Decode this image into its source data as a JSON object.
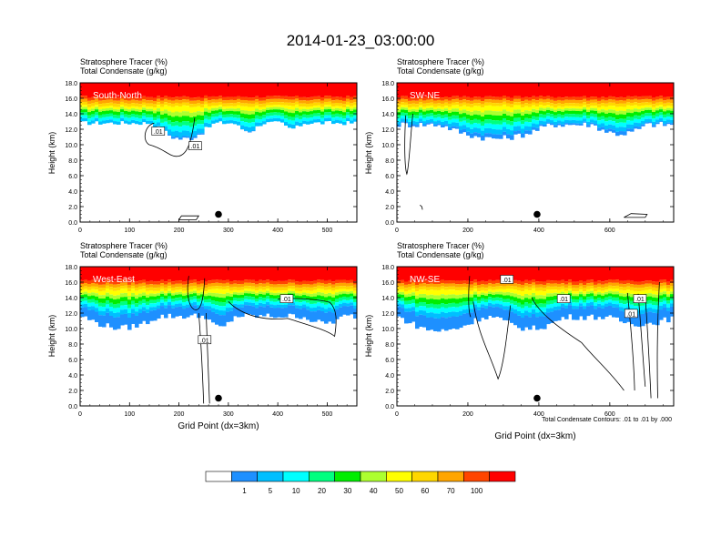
{
  "figure_title": "2014-01-23_03:00:00",
  "colorbar": {
    "colors": [
      "#ffffff",
      "#1e90ff",
      "#00bfff",
      "#00ffff",
      "#00ff7f",
      "#00ee00",
      "#adff2f",
      "#ffff00",
      "#ffd700",
      "#ffa500",
      "#ff4500",
      "#ff0000"
    ],
    "labels": [
      "1",
      "5",
      "10",
      "20",
      "30",
      "40",
      "50",
      "60",
      "70",
      "100"
    ]
  },
  "footnote": "Total Condensate Contours: .01 to .01 by .000",
  "chart_data": [
    {
      "type": "heatmap",
      "panel_label": "South-North",
      "title_line1": "Stratosphere Tracer   (%)",
      "title_line2": "Total Condensate   (g/kg)",
      "ylabel": "Height (km)",
      "xlabel": "",
      "xlim": [
        0,
        560
      ],
      "ylim": [
        0,
        18
      ],
      "xticks": [
        "0",
        "100",
        "200",
        "300",
        "400",
        "500"
      ],
      "xtick_values": [
        0,
        100,
        200,
        300,
        400,
        500
      ],
      "yticks": [
        "0.0",
        "2.0",
        "4.0",
        "6.0",
        "8.0",
        "10.0",
        "12.0",
        "14.0",
        "16.0",
        "18.0"
      ],
      "marker": {
        "x": 280,
        "y": 1.0
      },
      "contour_labels": [
        {
          "text": ".01",
          "x": 158,
          "y": 11.7
        },
        {
          "text": ".01",
          "x": 233,
          "y": 9.8
        }
      ]
    },
    {
      "type": "heatmap",
      "panel_label": "SW-NE",
      "title_line1": "Stratosphere Tracer   (%)",
      "title_line2": "Total Condensate   (g/kg)",
      "ylabel": "Height (km)",
      "xlabel": "",
      "xlim": [
        0,
        780
      ],
      "ylim": [
        0,
        18
      ],
      "xticks": [
        "0",
        "200",
        "400",
        "600"
      ],
      "xtick_values": [
        0,
        200,
        400,
        600
      ],
      "yticks": [
        "0.0",
        "2.0",
        "4.0",
        "6.0",
        "8.0",
        "10.0",
        "12.0",
        "14.0",
        "16.0",
        "18.0"
      ],
      "marker": {
        "x": 395,
        "y": 1.0
      },
      "contour_labels": []
    },
    {
      "type": "heatmap",
      "panel_label": "West-East",
      "title_line1": "Stratosphere Tracer   (%)",
      "title_line2": "Total Condensate   (g/kg)",
      "ylabel": "Height (km)",
      "xlabel": "Grid Point (dx=3km)",
      "xlim": [
        0,
        560
      ],
      "ylim": [
        0,
        18
      ],
      "xticks": [
        "0",
        "100",
        "200",
        "300",
        "400",
        "500"
      ],
      "xtick_values": [
        0,
        100,
        200,
        300,
        400,
        500
      ],
      "yticks": [
        "0.0",
        "2.0",
        "4.0",
        "6.0",
        "8.0",
        "10.0",
        "12.0",
        "14.0",
        "16.0",
        "18.0"
      ],
      "marker": {
        "x": 280,
        "y": 1.0
      },
      "contour_labels": [
        {
          "text": ".01",
          "x": 252,
          "y": 8.5
        },
        {
          "text": ".01",
          "x": 418,
          "y": 13.8
        }
      ]
    },
    {
      "type": "heatmap",
      "panel_label": "NW-SE",
      "title_line1": "Stratosphere Tracer   (%)",
      "title_line2": "Total Condensate   (g/kg)",
      "ylabel": "Height (km)",
      "xlabel": "Grid Point (dx=3km)",
      "xlim": [
        0,
        780
      ],
      "ylim": [
        0,
        18
      ],
      "xticks": [
        "0",
        "200",
        "400",
        "600"
      ],
      "xtick_values": [
        0,
        200,
        400,
        600
      ],
      "yticks": [
        "0.0",
        "2.0",
        "4.0",
        "6.0",
        "8.0",
        "10.0",
        "12.0",
        "14.0",
        "16.0",
        "18.0"
      ],
      "marker": {
        "x": 395,
        "y": 1.0
      },
      "contour_labels": [
        {
          "text": ".01",
          "x": 310,
          "y": 16.3
        },
        {
          "text": ".01",
          "x": 470,
          "y": 13.8
        },
        {
          "text": ".01",
          "x": 685,
          "y": 13.8
        },
        {
          "text": ".01",
          "x": 660,
          "y": 11.9
        }
      ]
    }
  ]
}
